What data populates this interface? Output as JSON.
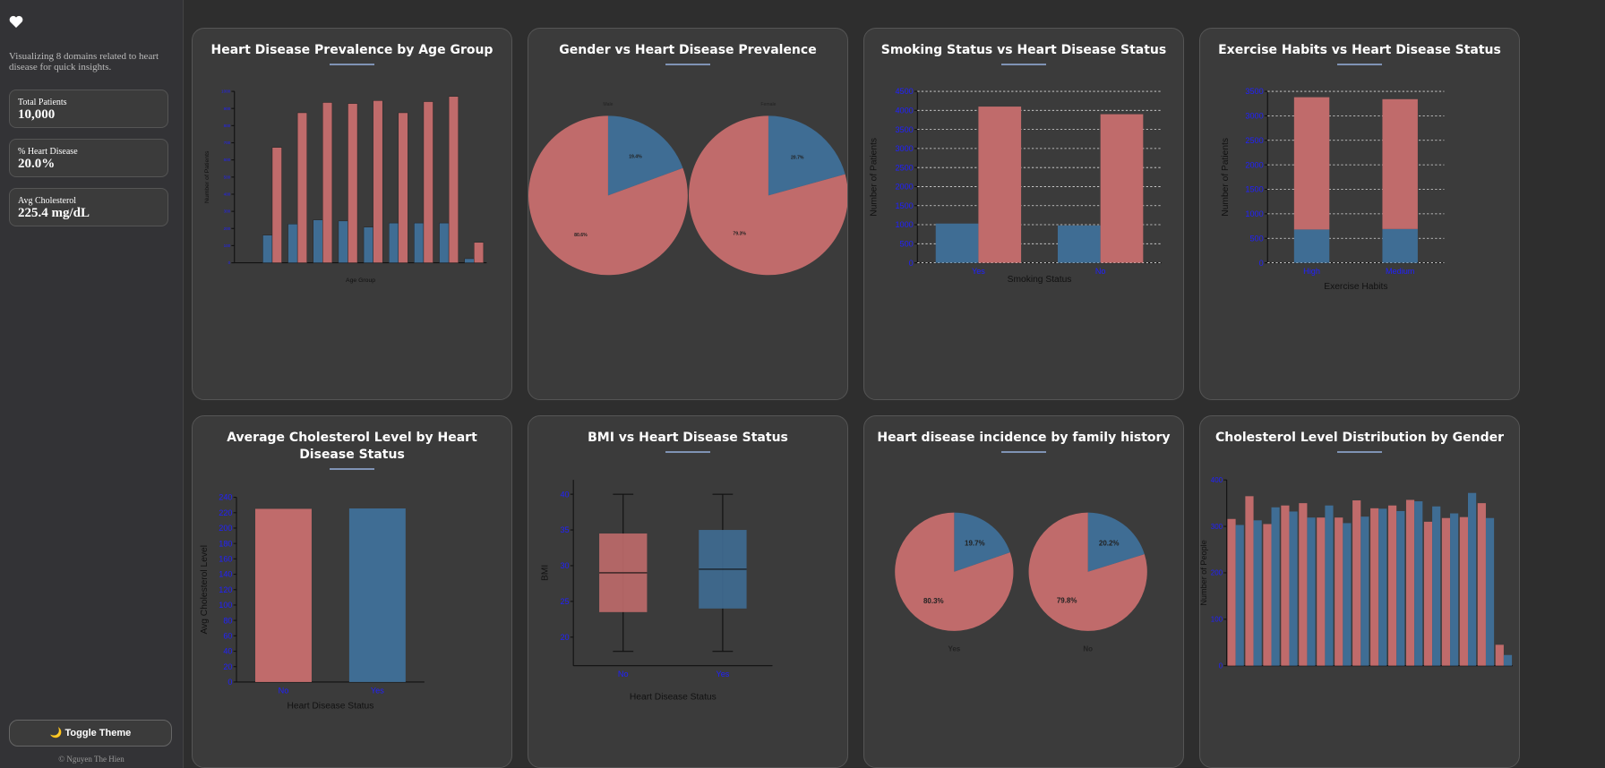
{
  "sidebar": {
    "description": "Visualizing 8 domains related to heart disease for quick insights.",
    "cards": [
      {
        "label": "Total Patients",
        "value": "10,000"
      },
      {
        "label": "% Heart Disease",
        "value": "20.0%"
      },
      {
        "label": "Avg Cholesterol",
        "value": "225.4 mg/dL"
      }
    ],
    "button": "🌙 Toggle Theme",
    "footer": "© Nguyen The Hien"
  },
  "chart_data": [
    {
      "type": "bar",
      "title": "Heart Disease Prevalence by Age Group",
      "xlabel": "Age Group",
      "ylabel": "Number of Patients",
      "categories": [
        null,
        null,
        null,
        null,
        null,
        null,
        null,
        null,
        null,
        null
      ],
      "series": [
        {
          "color": "#3f6d94",
          "values": [
            0,
            161,
            226,
            250,
            244,
            208,
            232,
            232,
            232,
            24
          ]
        },
        {
          "color": "#c06b6b",
          "values": [
            0,
            673,
            875,
            935,
            929,
            946,
            875,
            940,
            970,
            119
          ]
        }
      ],
      "ylim": [
        0,
        1000
      ],
      "yticks": [
        0,
        100,
        200,
        300,
        400,
        500,
        600,
        700,
        800,
        900,
        1000
      ],
      "grid": false
    },
    {
      "type": "pie",
      "title": "Gender vs Heart Disease Prevalence",
      "colors": [
        "#3f6d94",
        "#c06b6b"
      ],
      "pies": [
        {
          "label": "Male",
          "values": [
            19.4,
            80.6
          ],
          "value_labels": [
            "19.4%",
            "80.6%"
          ]
        },
        {
          "label": "Female",
          "values": [
            20.7,
            79.3
          ],
          "value_labels": [
            "20.7%",
            "79.3%"
          ]
        }
      ]
    },
    {
      "type": "bar",
      "title": "Smoking Status vs Heart Disease Status",
      "xlabel": "Smoking Status",
      "ylabel": "Number of Patients",
      "categories": [
        "Yes",
        "No"
      ],
      "series": [
        {
          "color": "#3f6d94",
          "values": [
            1030,
            980
          ]
        },
        {
          "color": "#c06b6b",
          "values": [
            4100,
            3900
          ]
        }
      ],
      "ylim": [
        0,
        4500
      ],
      "yticks": [
        0,
        500,
        1000,
        1500,
        2000,
        2500,
        3000,
        3500,
        4000,
        4500
      ],
      "grid": true
    },
    {
      "type": "bar",
      "title": "Exercise Habits vs Heart Disease Status",
      "xlabel": "Exercise Habits",
      "ylabel": "Number of Patients",
      "categories": [
        "High",
        "Medium"
      ],
      "stacked": true,
      "series": [
        {
          "color": "#3f6d94",
          "values": [
            680,
            690
          ]
        },
        {
          "color": "#c06b6b",
          "values": [
            2700,
            2650
          ]
        }
      ],
      "ylim": [
        0,
        3500
      ],
      "yticks": [
        0,
        500,
        1000,
        1500,
        2000,
        2500,
        3000,
        3500
      ],
      "grid": true
    },
    {
      "type": "bar",
      "title": "Average Cholesterol Level by Heart Disease Status",
      "xlabel": "Heart Disease Status",
      "ylabel": "Avg Cholesterol Level",
      "categories": [
        "No",
        "Yes"
      ],
      "values": [
        225,
        225.5
      ],
      "colors": [
        "#c06b6b",
        "#3f6d94"
      ],
      "ylim": [
        0,
        240
      ],
      "yticks": [
        0,
        20,
        40,
        60,
        80,
        100,
        120,
        140,
        160,
        180,
        200,
        220,
        240
      ],
      "grid": false
    },
    {
      "type": "box",
      "title": "BMI vs Heart Disease Status",
      "xlabel": "Heart Disease Status",
      "ylabel": "BMI",
      "categories": [
        "No",
        "Yes"
      ],
      "colors": [
        "#c06b6b",
        "#3f6d94"
      ],
      "boxes": [
        {
          "min": 18,
          "q1": 23.5,
          "median": 29,
          "q3": 34.5,
          "max": 40
        },
        {
          "min": 18,
          "q1": 24,
          "median": 29.5,
          "q3": 35,
          "max": 40
        }
      ],
      "ylim": [
        16,
        42
      ],
      "yticks": [
        20,
        25,
        30,
        35,
        40
      ],
      "grid": false
    },
    {
      "type": "pie",
      "title": "Heart disease incidence by family history",
      "colors": [
        "#3f6d94",
        "#c06b6b"
      ],
      "pies": [
        {
          "label": "Yes",
          "values": [
            19.7,
            80.3
          ],
          "value_labels": [
            "19.7%",
            "80.3%"
          ]
        },
        {
          "label": "No",
          "values": [
            20.2,
            79.8
          ],
          "value_labels": [
            "20.2%",
            "79.8%"
          ]
        }
      ]
    },
    {
      "type": "bar",
      "title": "Cholesterol Level Distribution by Gender",
      "ylabel": "Number of People",
      "categories": [
        null,
        null,
        null,
        null,
        null,
        null,
        null,
        null,
        null,
        null,
        null,
        null,
        null,
        null,
        null,
        null
      ],
      "series": [
        {
          "color": "#c06b6b",
          "values": [
            316,
            365,
            305,
            345,
            350,
            319,
            319,
            356,
            339,
            345,
            357,
            310,
            318,
            320,
            350,
            45
          ]
        },
        {
          "color": "#3f6d94",
          "values": [
            303,
            313,
            341,
            332,
            319,
            345,
            307,
            321,
            338,
            333,
            354,
            343,
            328,
            372,
            318,
            23
          ]
        }
      ],
      "ylim": [
        0,
        400
      ],
      "yticks": [
        0,
        100,
        200,
        300,
        400
      ],
      "grid": false
    }
  ]
}
